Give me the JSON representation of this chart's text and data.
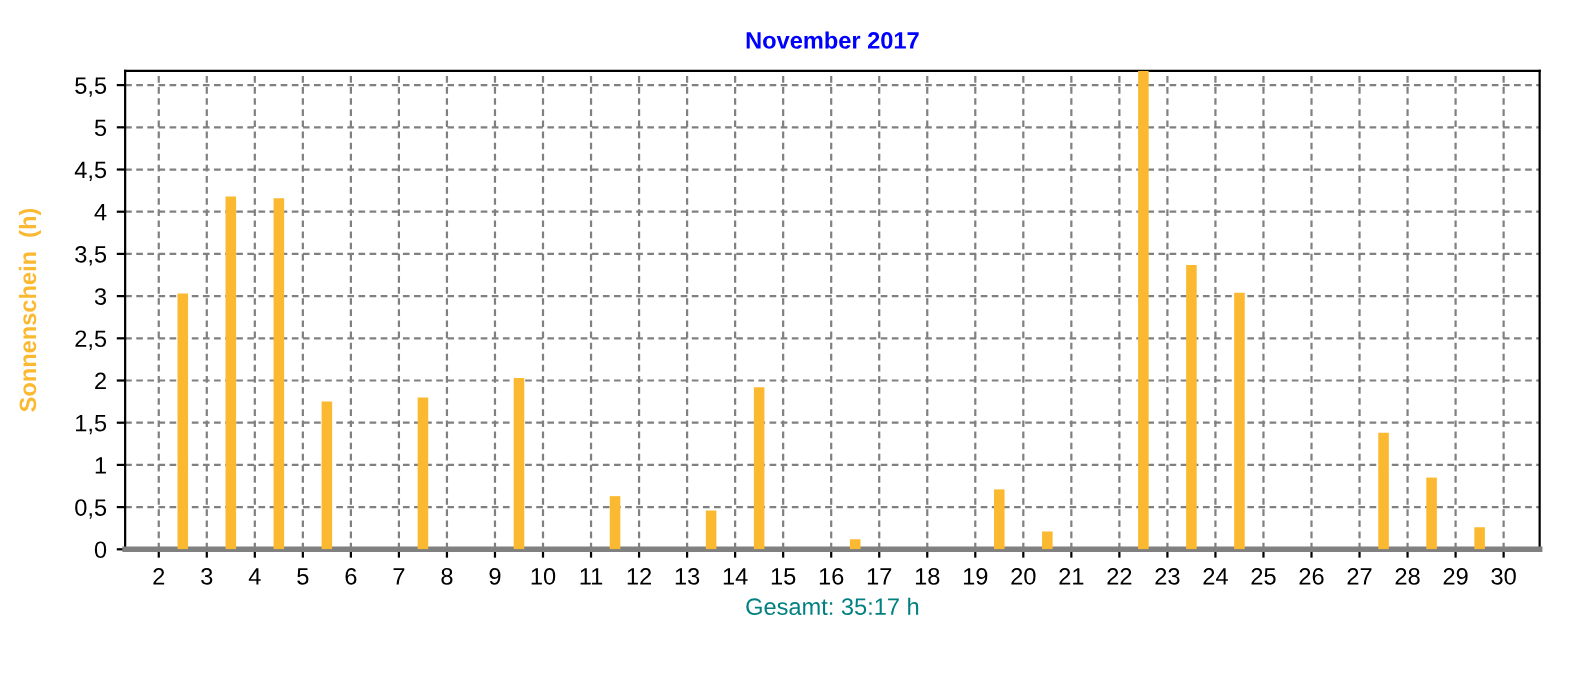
{
  "chart_data": {
    "type": "bar",
    "title": "November 2017",
    "ylabel": "Sonnenschein  (h)",
    "xlabel": "Gesamt: 35:17 h",
    "x": [
      1.5,
      2.5,
      3.5,
      4.5,
      5.5,
      6.5,
      7.5,
      8.5,
      9.5,
      10.5,
      11.5,
      12.5,
      13.5,
      14.5,
      15.5,
      16.5,
      17.5,
      18.5,
      19.5,
      20.5,
      21.5,
      22.5,
      23.5,
      24.5,
      25.5,
      26.5,
      27.5,
      28.5,
      29.5,
      30.5
    ],
    "values": [
      0,
      3.03,
      4.18,
      4.16,
      1.75,
      0,
      1.8,
      0,
      2.03,
      0,
      0.63,
      0,
      0.46,
      1.92,
      0,
      0.12,
      0,
      0,
      0.71,
      0.21,
      0,
      5.67,
      3.37,
      3.04,
      0,
      0,
      1.38,
      0.85,
      0.26,
      0
    ],
    "color": "#fbb931",
    "xlim": [
      1.3,
      30.75
    ],
    "xticks": [
      2,
      3,
      4,
      5,
      6,
      7,
      8,
      9,
      10,
      11,
      12,
      13,
      14,
      15,
      16,
      17,
      18,
      19,
      20,
      21,
      22,
      23,
      24,
      25,
      26,
      27,
      28,
      29,
      30
    ],
    "ylim": [
      0,
      5.67
    ],
    "yticks": [
      0,
      {
        "value": 0.5,
        "label": "0,5"
      },
      1,
      {
        "value": 1.5,
        "label": "1,5"
      },
      2,
      {
        "value": 2.5,
        "label": "2,5"
      },
      3,
      {
        "value": 3.5,
        "label": "3,5"
      },
      4,
      {
        "value": 4.5,
        "label": "4,5"
      },
      5,
      {
        "value": 5.5,
        "label": "5,5"
      }
    ],
    "grid": true
  }
}
